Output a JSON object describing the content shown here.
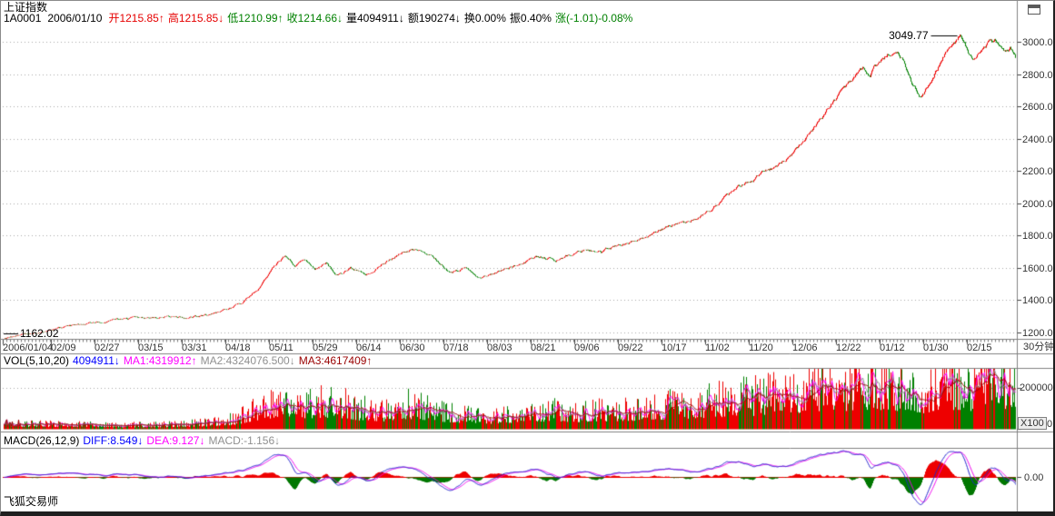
{
  "window": {
    "title": "上证指数",
    "period_label": "30分钟",
    "status_bar": "飞狐交易师"
  },
  "header": {
    "symbol": "1A0001",
    "date": "2006/01/10",
    "fields": [
      {
        "name": "open-field",
        "text": "开1215.85↑",
        "color": "#e60000"
      },
      {
        "name": "high-field",
        "text": "高1215.85↓",
        "color": "#e60000"
      },
      {
        "name": "low-field",
        "text": "低1210.99↑",
        "color": "#008000"
      },
      {
        "name": "close-field",
        "text": "收1214.66↓",
        "color": "#008000"
      },
      {
        "name": "volume-field",
        "text": "量4094911↓",
        "color": "#000000"
      },
      {
        "name": "amount-field",
        "text": "额190274↓",
        "color": "#000000"
      },
      {
        "name": "turnover-field",
        "text": "换0.00%",
        "color": "#000000"
      },
      {
        "name": "amplitude-field",
        "text": "振0.40%",
        "color": "#000000"
      },
      {
        "name": "change-field",
        "text": "涨(-1.01)-0.08%",
        "color": "#008000"
      }
    ]
  },
  "vol_header": {
    "fields": [
      {
        "name": "vol-indicator-label",
        "text": "VOL(5,10,20)",
        "color": "#000000"
      },
      {
        "name": "vol-current-value",
        "text": "4094911↓",
        "color": "#0000ff"
      },
      {
        "name": "vol-ma1-value",
        "text": "MA1:4319912↑",
        "color": "#ff00ff"
      },
      {
        "name": "vol-ma2-value",
        "text": "MA2:4324076.500↓",
        "color": "#909090"
      },
      {
        "name": "vol-ma3-value",
        "text": "MA3:4617409↑",
        "color": "#990000"
      }
    ]
  },
  "macd_header": {
    "fields": [
      {
        "name": "macd-indicator-label",
        "text": "MACD(26,12,9)",
        "color": "#000000"
      },
      {
        "name": "macd-diff-value",
        "text": "DIFF:8.549↓",
        "color": "#0000ff"
      },
      {
        "name": "macd-dea-value",
        "text": "DEA:9.127↓",
        "color": "#ff00ff"
      },
      {
        "name": "macd-value",
        "text": "MACD:-1.156↓",
        "color": "#909090"
      }
    ]
  },
  "chart_data": {
    "type": "candlestick",
    "title": "上证指数 (Shanghai Composite Index), 30-minute bars, 2006/01/04 - 2007/02",
    "period": "30分钟",
    "bars": 1115,
    "seed": 9,
    "up_color": "#ee0000",
    "down_color": "#008000",
    "grid_color": "#a8a8a8",
    "x_tick_labels": [
      "2006/01/04",
      "02/09",
      "02/27",
      "03/15",
      "03/31",
      "04/18",
      "05/11",
      "05/29",
      "06/14",
      "06/30",
      "07/18",
      "08/03",
      "08/21",
      "09/06",
      "09/22",
      "10/17",
      "11/02",
      "11/20",
      "12/06",
      "12/22",
      "01/12",
      "01/30",
      "02/15"
    ],
    "y_axis": {
      "ticks": [
        3000,
        2800,
        2600,
        2400,
        2200,
        2000,
        1800,
        1600,
        1400,
        1200
      ],
      "price_min": 1162.02,
      "price_max": 3049.77
    },
    "annotations": {
      "high": {
        "label": "3049.77",
        "value": 3049.77,
        "near_frac": 0.944
      },
      "low": {
        "label": "1162.02",
        "value": 1162.02,
        "near_frac": 0.0
      }
    },
    "price_anchors": [
      [
        0,
        1162
      ],
      [
        0.02,
        1186
      ],
      [
        0.045,
        1212
      ],
      [
        0.07,
        1240
      ],
      [
        0.095,
        1268
      ],
      [
        0.12,
        1282
      ],
      [
        0.145,
        1292
      ],
      [
        0.165,
        1300
      ],
      [
        0.18,
        1287
      ],
      [
        0.2,
        1305
      ],
      [
        0.215,
        1330
      ],
      [
        0.235,
        1380
      ],
      [
        0.252,
        1480
      ],
      [
        0.262,
        1570
      ],
      [
        0.272,
        1640
      ],
      [
        0.278,
        1678
      ],
      [
        0.287,
        1615
      ],
      [
        0.297,
        1655
      ],
      [
        0.307,
        1588
      ],
      [
        0.318,
        1635
      ],
      [
        0.328,
        1548
      ],
      [
        0.342,
        1598
      ],
      [
        0.357,
        1542
      ],
      [
        0.372,
        1615
      ],
      [
        0.388,
        1682
      ],
      [
        0.402,
        1718
      ],
      [
        0.415,
        1692
      ],
      [
        0.428,
        1640
      ],
      [
        0.44,
        1575
      ],
      [
        0.455,
        1595
      ],
      [
        0.468,
        1545
      ],
      [
        0.483,
        1562
      ],
      [
        0.5,
        1602
      ],
      [
        0.515,
        1642
      ],
      [
        0.53,
        1662
      ],
      [
        0.545,
        1650
      ],
      [
        0.56,
        1682
      ],
      [
        0.575,
        1718
      ],
      [
        0.59,
        1702
      ],
      [
        0.607,
        1738
      ],
      [
        0.623,
        1772
      ],
      [
        0.638,
        1818
      ],
      [
        0.652,
        1848
      ],
      [
        0.667,
        1878
      ],
      [
        0.682,
        1902
      ],
      [
        0.697,
        1958
      ],
      [
        0.712,
        2042
      ],
      [
        0.726,
        2102
      ],
      [
        0.74,
        2148
      ],
      [
        0.753,
        2208
      ],
      [
        0.766,
        2248
      ],
      [
        0.777,
        2295
      ],
      [
        0.789,
        2378
      ],
      [
        0.8,
        2458
      ],
      [
        0.81,
        2548
      ],
      [
        0.82,
        2638
      ],
      [
        0.83,
        2718
      ],
      [
        0.84,
        2782
      ],
      [
        0.848,
        2828
      ],
      [
        0.855,
        2798
      ],
      [
        0.863,
        2862
      ],
      [
        0.872,
        2918
      ],
      [
        0.88,
        2942
      ],
      [
        0.888,
        2888
      ],
      [
        0.897,
        2742
      ],
      [
        0.905,
        2668
      ],
      [
        0.913,
        2732
      ],
      [
        0.922,
        2832
      ],
      [
        0.931,
        2948
      ],
      [
        0.938,
        3008
      ],
      [
        0.944,
        3046
      ],
      [
        0.951,
        2958
      ],
      [
        0.957,
        2882
      ],
      [
        0.964,
        2928
      ],
      [
        0.972,
        2982
      ],
      [
        0.98,
        2998
      ],
      [
        0.988,
        2948
      ],
      [
        0.994,
        2972
      ],
      [
        1,
        2895
      ]
    ],
    "volume": {
      "axis_mid": "200000",
      "axis_zero": "0",
      "unit": "X100",
      "scale_mid_value": 200000,
      "ma_periods": [
        5,
        10,
        20
      ],
      "ma_colors": [
        "#ff00ff",
        "#909090",
        "#990000"
      ],
      "anchors": [
        [
          0,
          30000
        ],
        [
          0.04,
          26000
        ],
        [
          0.08,
          24000
        ],
        [
          0.12,
          22000
        ],
        [
          0.16,
          24000
        ],
        [
          0.2,
          32000
        ],
        [
          0.23,
          55000
        ],
        [
          0.255,
          115000
        ],
        [
          0.28,
          150000
        ],
        [
          0.3,
          125000
        ],
        [
          0.325,
          140000
        ],
        [
          0.35,
          105000
        ],
        [
          0.375,
          95000
        ],
        [
          0.4,
          125000
        ],
        [
          0.425,
          95000
        ],
        [
          0.45,
          75000
        ],
        [
          0.48,
          65000
        ],
        [
          0.51,
          80000
        ],
        [
          0.54,
          95000
        ],
        [
          0.57,
          85000
        ],
        [
          0.6,
          95000
        ],
        [
          0.63,
          105000
        ],
        [
          0.66,
          120000
        ],
        [
          0.69,
          135000
        ],
        [
          0.72,
          150000
        ],
        [
          0.75,
          165000
        ],
        [
          0.78,
          185000
        ],
        [
          0.81,
          205000
        ],
        [
          0.84,
          225000
        ],
        [
          0.86,
          240000
        ],
        [
          0.88,
          215000
        ],
        [
          0.9,
          185000
        ],
        [
          0.92,
          205000
        ],
        [
          0.94,
          235000
        ],
        [
          0.96,
          215000
        ],
        [
          0.98,
          245000
        ],
        [
          1,
          225000
        ]
      ]
    },
    "macd": {
      "params": [
        26,
        12,
        9
      ],
      "axis_zero_label": "0.00",
      "diff_color": "#2222cc",
      "dea_color": "#ee00ee",
      "hist_pos_color": "#ee0000",
      "hist_neg_color": "#007700",
      "zero_line_color": "#ee0000"
    }
  }
}
